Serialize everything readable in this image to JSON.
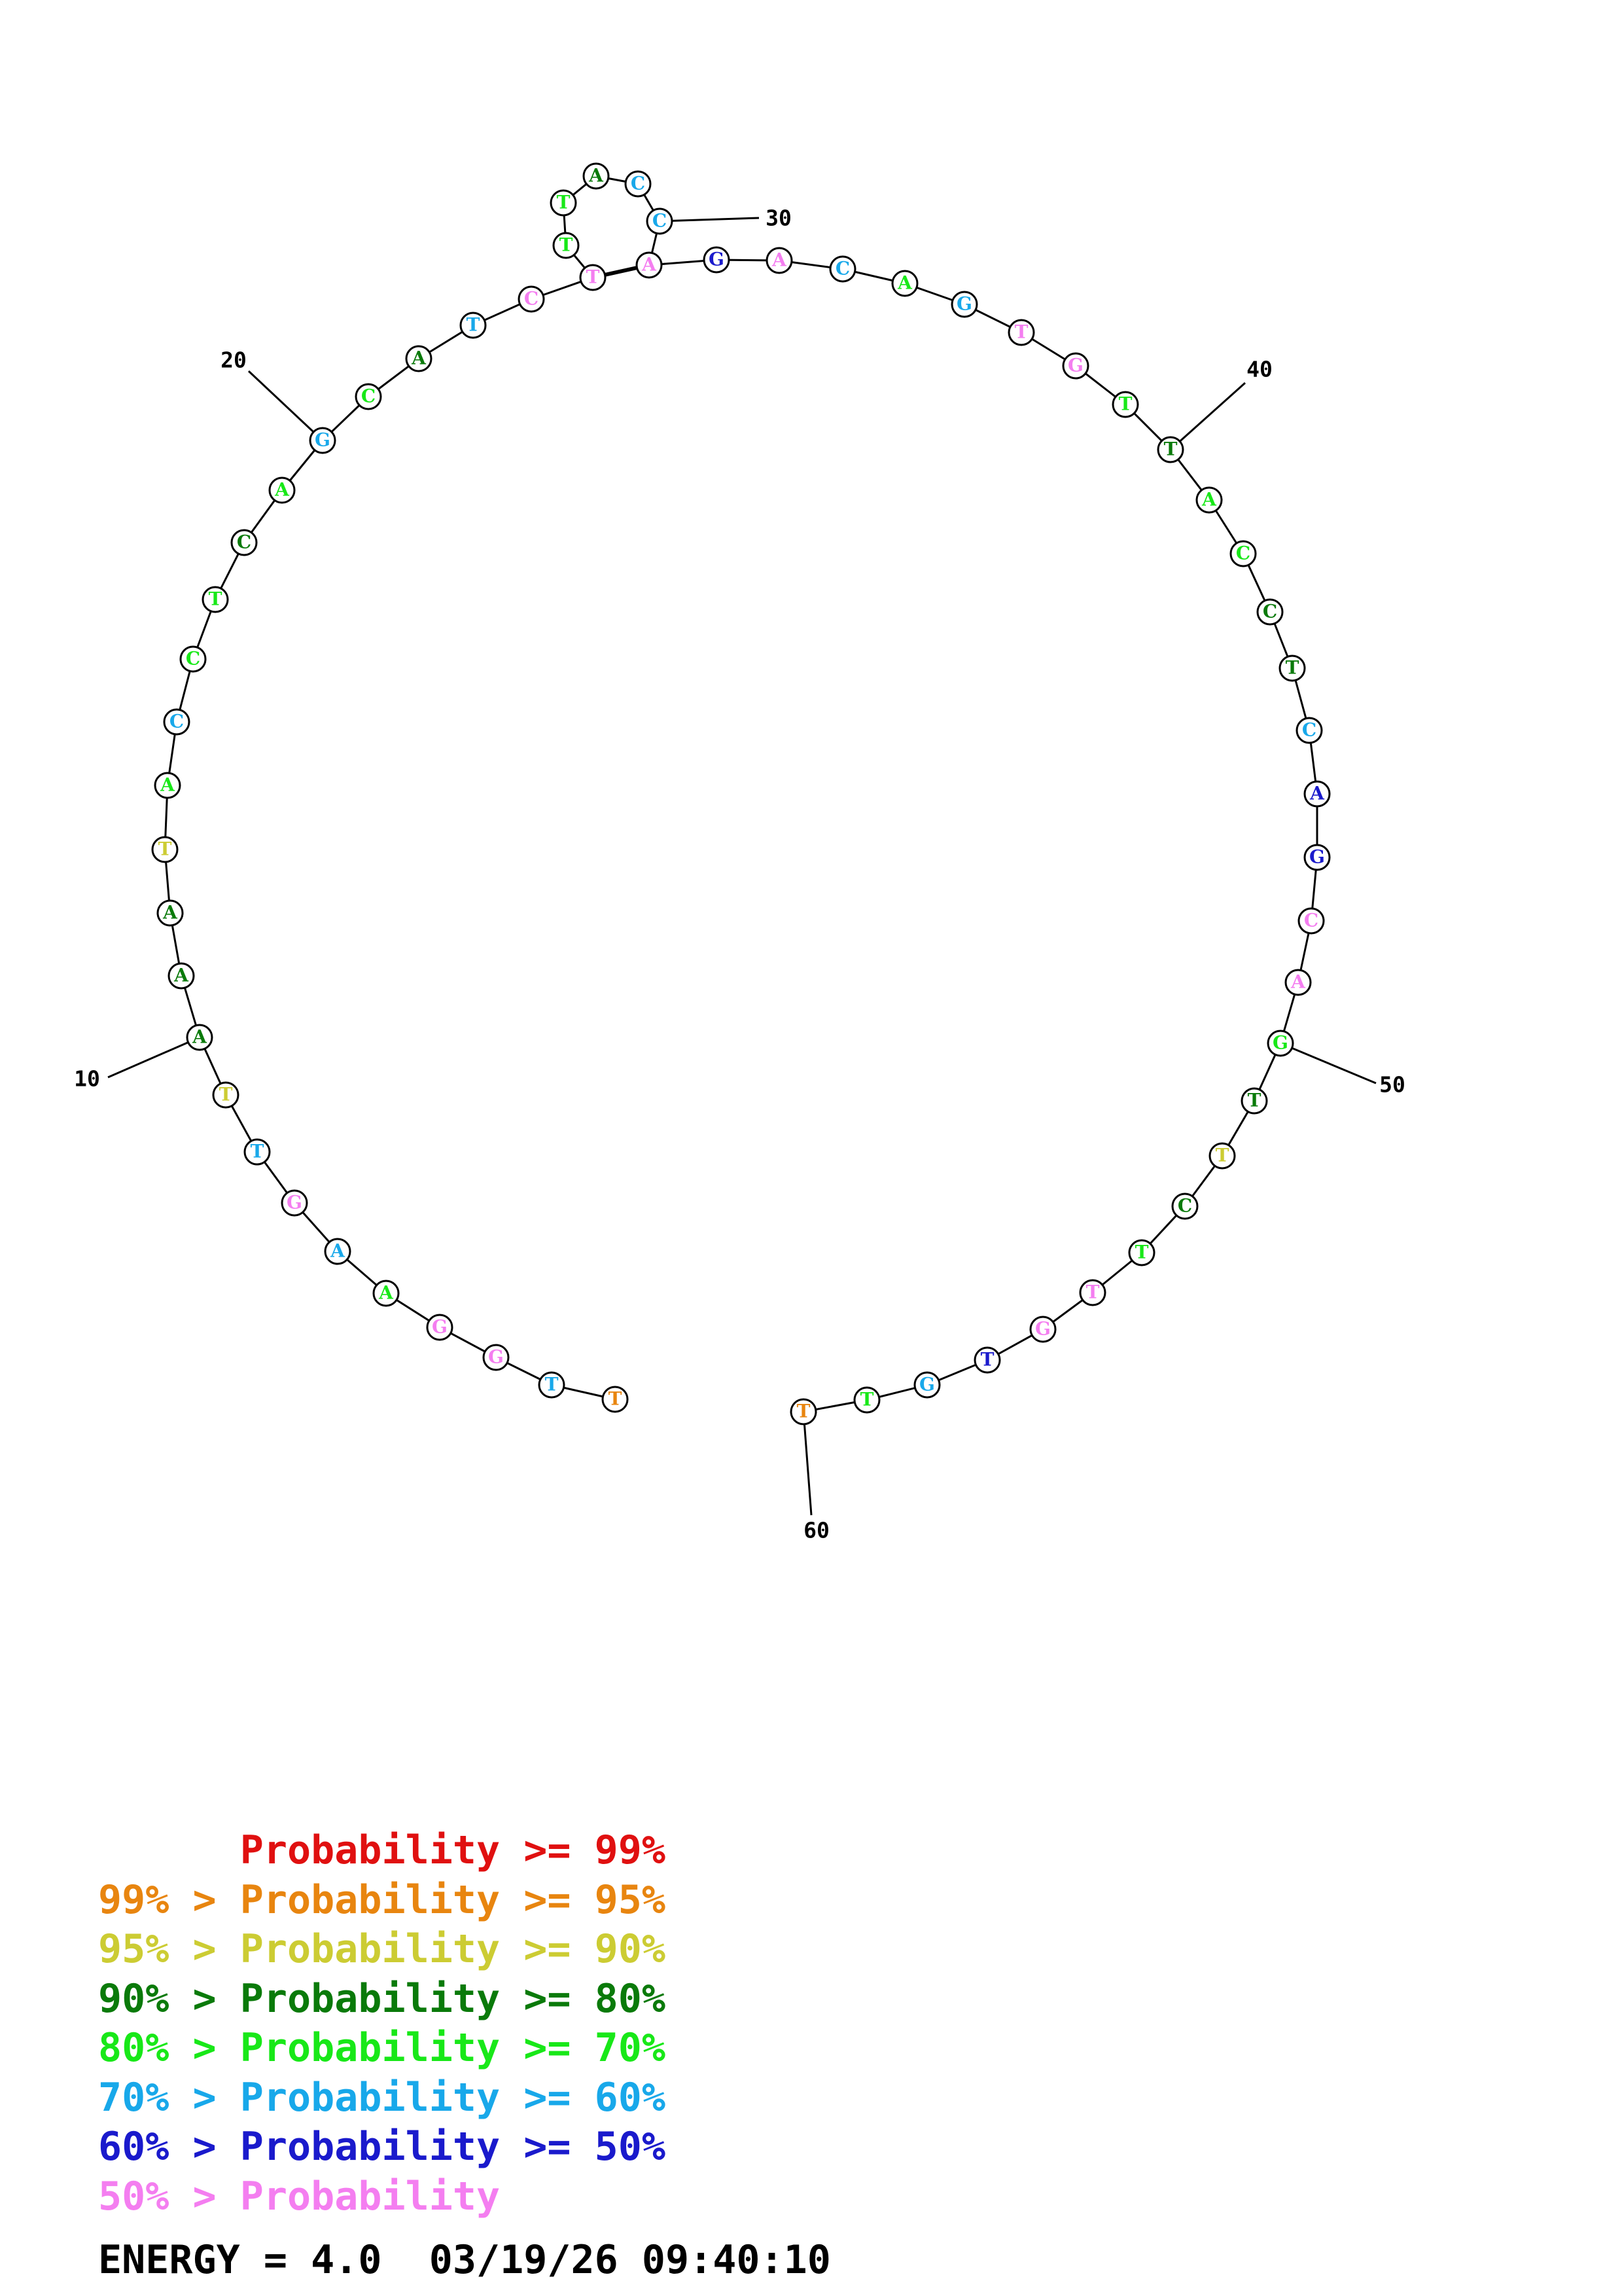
{
  "diagram": {
    "bases": [
      {
        "n": 1,
        "base": "T",
        "color": "#e8850f"
      },
      {
        "n": 2,
        "base": "T",
        "color": "#18a8ea"
      },
      {
        "n": 3,
        "base": "G",
        "color": "#f47ef0"
      },
      {
        "n": 4,
        "base": "G",
        "color": "#f47ef0"
      },
      {
        "n": 5,
        "base": "A",
        "color": "#18e818"
      },
      {
        "n": 6,
        "base": "A",
        "color": "#18a8ea"
      },
      {
        "n": 7,
        "base": "G",
        "color": "#f47ef0"
      },
      {
        "n": 8,
        "base": "T",
        "color": "#18a8ea"
      },
      {
        "n": 9,
        "base": "T",
        "color": "#cccc33"
      },
      {
        "n": 10,
        "base": "A",
        "color": "#0a7a0a"
      },
      {
        "n": 11,
        "base": "A",
        "color": "#0a7a0a"
      },
      {
        "n": 12,
        "base": "A",
        "color": "#0a7a0a"
      },
      {
        "n": 13,
        "base": "T",
        "color": "#cccc33"
      },
      {
        "n": 14,
        "base": "A",
        "color": "#18e818"
      },
      {
        "n": 15,
        "base": "C",
        "color": "#18a8ea"
      },
      {
        "n": 16,
        "base": "C",
        "color": "#18e818"
      },
      {
        "n": 17,
        "base": "T",
        "color": "#18e818"
      },
      {
        "n": 18,
        "base": "C",
        "color": "#0a7a0a"
      },
      {
        "n": 19,
        "base": "A",
        "color": "#18e818"
      },
      {
        "n": 20,
        "base": "G",
        "color": "#18a8ea"
      },
      {
        "n": 21,
        "base": "C",
        "color": "#18e818"
      },
      {
        "n": 22,
        "base": "A",
        "color": "#0a7a0a"
      },
      {
        "n": 23,
        "base": "T",
        "color": "#18a8ea"
      },
      {
        "n": 24,
        "base": "C",
        "color": "#f47ef0"
      },
      {
        "n": 25,
        "base": "T",
        "color": "#f47ef0"
      },
      {
        "n": 26,
        "base": "T",
        "color": "#18e818"
      },
      {
        "n": 27,
        "base": "T",
        "color": "#18e818"
      },
      {
        "n": 28,
        "base": "A",
        "color": "#0a7a0a"
      },
      {
        "n": 29,
        "base": "C",
        "color": "#18a8ea"
      },
      {
        "n": 30,
        "base": "C",
        "color": "#18a8ea"
      },
      {
        "n": 31,
        "base": "A",
        "color": "#f47ef0"
      },
      {
        "n": 32,
        "base": "G",
        "color": "#1a1acc"
      },
      {
        "n": 33,
        "base": "A",
        "color": "#f47ef0"
      },
      {
        "n": 34,
        "base": "C",
        "color": "#18a8ea"
      },
      {
        "n": 35,
        "base": "A",
        "color": "#18e818"
      },
      {
        "n": 36,
        "base": "G",
        "color": "#18a8ea"
      },
      {
        "n": 37,
        "base": "T",
        "color": "#f47ef0"
      },
      {
        "n": 38,
        "base": "G",
        "color": "#f47ef0"
      },
      {
        "n": 39,
        "base": "T",
        "color": "#18e818"
      },
      {
        "n": 40,
        "base": "T",
        "color": "#0a7a0a"
      },
      {
        "n": 41,
        "base": "A",
        "color": "#18e818"
      },
      {
        "n": 42,
        "base": "C",
        "color": "#18e818"
      },
      {
        "n": 43,
        "base": "C",
        "color": "#0a7a0a"
      },
      {
        "n": 44,
        "base": "T",
        "color": "#0a7a0a"
      },
      {
        "n": 45,
        "base": "C",
        "color": "#18a8ea"
      },
      {
        "n": 46,
        "base": "A",
        "color": "#1a1acc"
      },
      {
        "n": 47,
        "base": "G",
        "color": "#1a1acc"
      },
      {
        "n": 48,
        "base": "C",
        "color": "#f47ef0"
      },
      {
        "n": 49,
        "base": "A",
        "color": "#f47ef0"
      },
      {
        "n": 50,
        "base": "G",
        "color": "#18e818"
      },
      {
        "n": 51,
        "base": "T",
        "color": "#0a7a0a"
      },
      {
        "n": 52,
        "base": "T",
        "color": "#cccc33"
      },
      {
        "n": 53,
        "base": "C",
        "color": "#0a7a0a"
      },
      {
        "n": 54,
        "base": "T",
        "color": "#18e818"
      },
      {
        "n": 55,
        "base": "T",
        "color": "#f47ef0"
      },
      {
        "n": 56,
        "base": "G",
        "color": "#f47ef0"
      },
      {
        "n": 57,
        "base": "T",
        "color": "#1a1acc"
      },
      {
        "n": 58,
        "base": "G",
        "color": "#18a8ea"
      },
      {
        "n": 59,
        "base": "T",
        "color": "#18e818"
      },
      {
        "n": 60,
        "base": "T",
        "color": "#e8850f"
      }
    ],
    "pairs": [
      [
        25,
        31
      ]
    ],
    "number_labels": [
      {
        "n": 10,
        "label": "10"
      },
      {
        "n": 20,
        "label": "20"
      },
      {
        "n": 30,
        "label": "30"
      },
      {
        "n": 40,
        "label": "40"
      },
      {
        "n": 50,
        "label": "50"
      },
      {
        "n": 60,
        "label": "60"
      }
    ]
  },
  "legend": [
    {
      "prefix": "    ",
      "text": "Probability >= 99%",
      "color": "#e01010"
    },
    {
      "prefix": "99% > ",
      "text": "Probability >= 95%",
      "color": "#e8850f"
    },
    {
      "prefix": "95% > ",
      "text": "Probability >= 90%",
      "color": "#cccc33"
    },
    {
      "prefix": "90% > ",
      "text": "Probability >= 80%",
      "color": "#0a7a0a"
    },
    {
      "prefix": "80% > ",
      "text": "Probability >= 70%",
      "color": "#18e818"
    },
    {
      "prefix": "70% > ",
      "text": "Probability >= 60%",
      "color": "#18a8ea"
    },
    {
      "prefix": "60% > ",
      "text": "Probability >= 50%",
      "color": "#1a1acc"
    },
    {
      "prefix": "50% > ",
      "text": "Probability",
      "color": "#f47ef0"
    }
  ],
  "energy": {
    "text": "ENERGY = 4.0  03/19/26 09:40:10"
  }
}
